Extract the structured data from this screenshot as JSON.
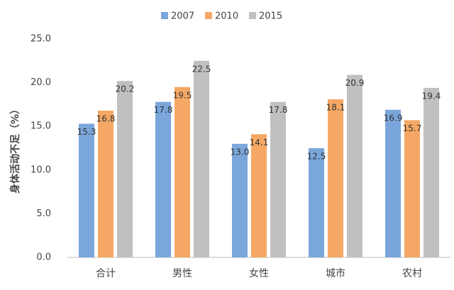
{
  "chart_data": {
    "type": "bar",
    "y_label": "身体活动不足（%）",
    "categories": [
      "合计",
      "男性",
      "女性",
      "城市",
      "农村"
    ],
    "series": [
      {
        "name": "2007",
        "color": "#7aa6dc",
        "values": [
          15.3,
          17.8,
          13,
          12.5,
          16.9
        ],
        "value_labels": [
          "15.3",
          "17.8",
          "13.0",
          "12.5",
          "16.9"
        ]
      },
      {
        "name": "2010",
        "color": "#f5a865",
        "values": [
          16.8,
          19.5,
          14.1,
          18.1,
          15.7
        ],
        "value_labels": [
          "16.8",
          "19.5",
          "14.1",
          "18.1",
          "15.7"
        ]
      },
      {
        "name": "2015",
        "color": "#c0c0c0",
        "values": [
          20.2,
          22.5,
          17.8,
          20.9,
          19.4
        ],
        "value_labels": [
          "20.2",
          "22.5",
          "17.8",
          "20.9",
          "19.4"
        ]
      }
    ],
    "ylim": [
      0,
      25
    ],
    "yticks": [
      {
        "value": 0,
        "label": "0.0"
      },
      {
        "value": 5,
        "label": "5.0"
      },
      {
        "value": 10,
        "label": "10.0"
      },
      {
        "value": 15,
        "label": "15.0"
      },
      {
        "value": 20,
        "label": "20.0"
      },
      {
        "value": 25,
        "label": "25.0"
      }
    ],
    "grid": false,
    "legend": "top"
  }
}
